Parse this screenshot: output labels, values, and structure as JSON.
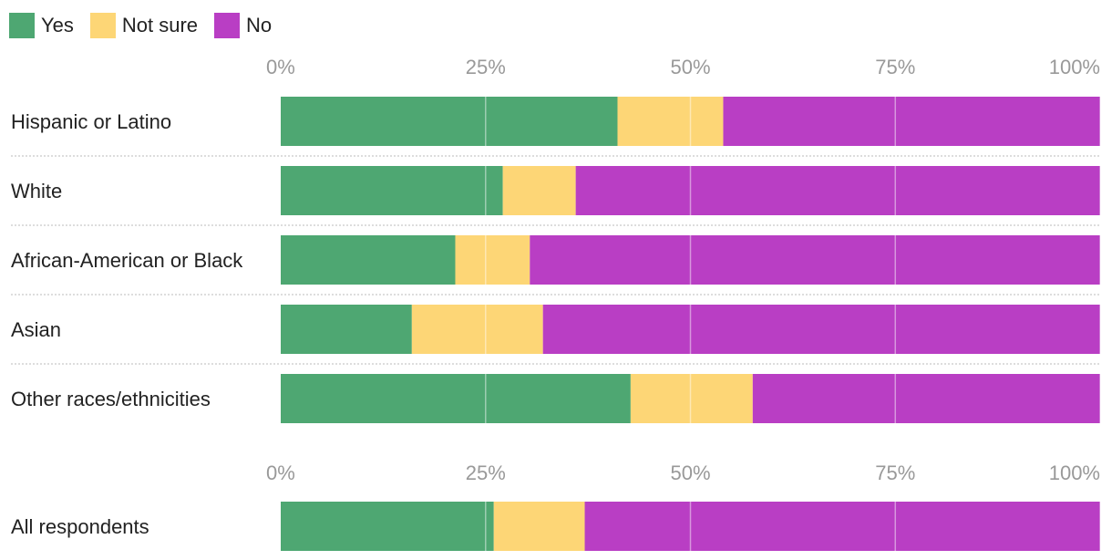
{
  "chart_data": {
    "type": "bar",
    "orientation": "horizontal",
    "stacked": true,
    "legend": {
      "position": "top-left",
      "entries": [
        {
          "name": "Yes",
          "color": "#4ea772"
        },
        {
          "name": "Not sure",
          "color": "#fdd676"
        },
        {
          "name": "No",
          "color": "#b93ec4"
        }
      ]
    },
    "xlim": [
      0,
      100
    ],
    "ticks": [
      "0%",
      "25%",
      "50%",
      "75%",
      "100%"
    ],
    "groups": [
      {
        "name": "by-race",
        "categories": [
          "Hispanic or Latino",
          "White",
          "African-American or Black",
          "Asian",
          "Other races/ethnicities"
        ],
        "series": [
          {
            "name": "Yes",
            "values": [
              41.1,
              27.1,
              21.3,
              16.0,
              42.7
            ]
          },
          {
            "name": "Not sure",
            "values": [
              12.9,
              8.9,
              9.1,
              16.0,
              14.9
            ]
          },
          {
            "name": "No",
            "values": [
              46.0,
              64.0,
              69.6,
              68.0,
              42.4
            ]
          }
        ]
      },
      {
        "name": "overall",
        "categories": [
          "All respondents"
        ],
        "series": [
          {
            "name": "Yes",
            "values": [
              26.0
            ]
          },
          {
            "name": "Not sure",
            "values": [
              11.1
            ]
          },
          {
            "name": "No",
            "values": [
              62.9
            ]
          }
        ]
      }
    ]
  }
}
